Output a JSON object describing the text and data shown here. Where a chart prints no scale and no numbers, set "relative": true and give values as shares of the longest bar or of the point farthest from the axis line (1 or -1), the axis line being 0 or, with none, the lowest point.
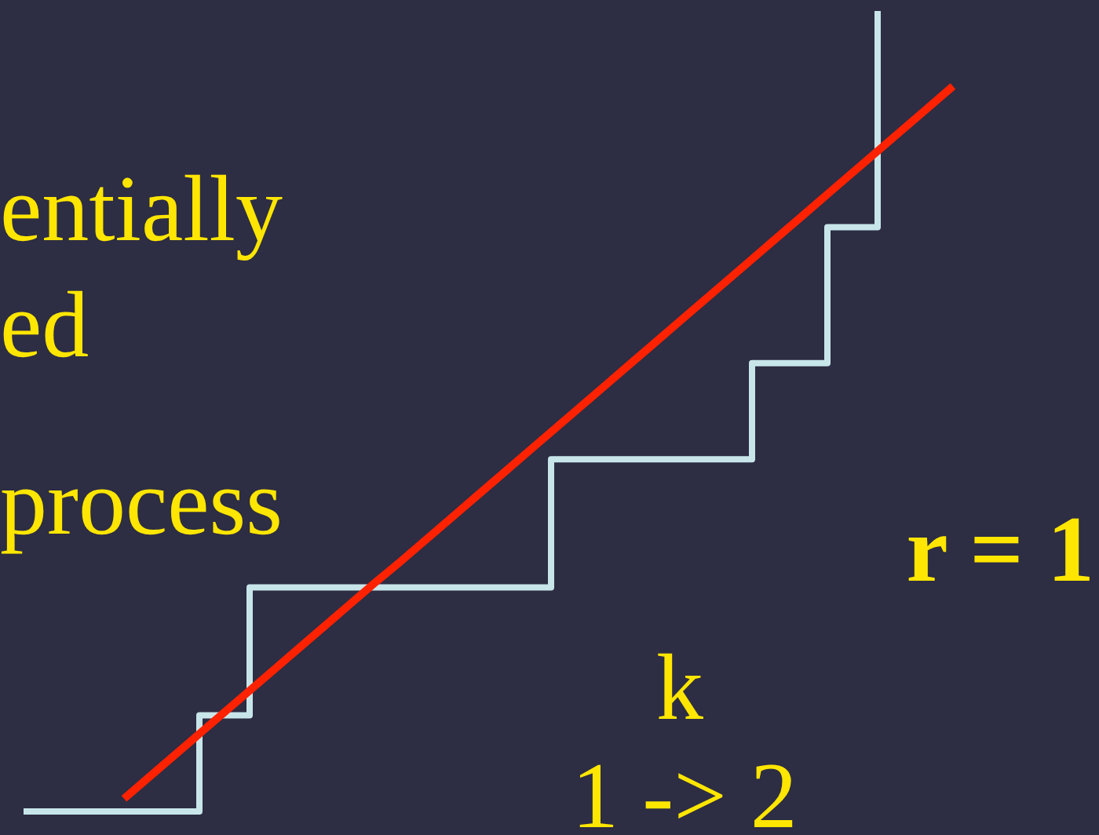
{
  "chart_data": {
    "type": "step",
    "relative": true,
    "tick_labels": false,
    "categories": [
      null,
      null,
      null,
      null,
      null,
      null,
      null,
      null,
      null,
      null,
      null,
      null,
      null,
      null,
      null,
      null,
      null,
      null,
      null,
      null,
      null,
      null,
      null,
      null,
      null,
      null,
      null,
      null,
      null,
      null,
      null,
      null,
      null,
      null,
      null,
      null,
      null,
      null
    ],
    "series": [
      {
        "type": "step",
        "color": "#c8e6ea",
        "values": [
          0,
          0,
          0,
          0,
          0,
          0,
          0,
          0.12,
          0.12,
          0.28,
          0.28,
          0.28,
          0.28,
          0.28,
          0.28,
          0.28,
          0.28,
          0.28,
          0.28,
          0.28,
          0.28,
          0.44,
          0.44,
          0.44,
          0.44,
          0.44,
          0.44,
          0.44,
          0.44,
          0.56,
          0.56,
          0.56,
          0.73,
          0.73,
          1,
          null,
          null,
          null
        ]
      },
      {
        "type": "line",
        "color": "#ff2200",
        "values": [
          null,
          null,
          null,
          null,
          0.016,
          0.043,
          0.07,
          0.097,
          0.124,
          0.151,
          0.178,
          0.205,
          0.232,
          0.259,
          0.286,
          0.312,
          0.339,
          0.366,
          0.393,
          0.42,
          0.447,
          0.474,
          0.501,
          0.528,
          0.555,
          0.582,
          0.609,
          0.636,
          0.663,
          0.69,
          0.717,
          0.744,
          0.771,
          0.798,
          0.825,
          0.852,
          0.879,
          0.906
        ]
      }
    ],
    "annotations": [
      "entially",
      "ed",
      "process",
      "k",
      "1 -> 2",
      "r = 1"
    ]
  }
}
